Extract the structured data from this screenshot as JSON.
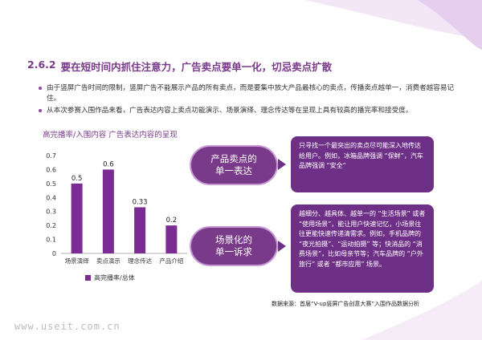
{
  "section": {
    "number": "2.6.2",
    "title": "要在短时间内抓住注意力，广告卖点要单一化，切忌卖点扩散"
  },
  "bullets": [
    "由于竖屏广告时间的限制，竖屏广告不能展示产品的所有卖点，而是要集中放大产品最核心的卖点，传播卖点越单一，消费者越容易记住。",
    "从本次参赛入围作品来看，广告表达内容上卖点功能演示、场景演绎、理念传达等在呈现上具有较高的播完率和接受度。"
  ],
  "chart_title": "高完播率/入围内容  广告表达内容的呈现",
  "chart_data": {
    "type": "bar",
    "categories": [
      "场景演绎",
      "卖点演示",
      "理念传达",
      "产品介绍"
    ],
    "series": [
      {
        "name": "高完播率/总体",
        "values": [
          0.5,
          0.6,
          0.33,
          0.2
        ]
      }
    ],
    "data_labels": [
      "0.5",
      "0.6",
      "0.33",
      "0.2"
    ],
    "y_ticks": [
      "0",
      "0.1",
      "0.2",
      "0.3",
      "0.4",
      "0.5",
      "0.6",
      "0.7"
    ],
    "ylim": [
      0,
      0.7
    ],
    "color": "#7b2c93",
    "legend": "bottom"
  },
  "tags": [
    {
      "line1": "产品卖点的",
      "line2": "单一表达"
    },
    {
      "line1": "场景化的",
      "line2": "单一诉求"
    }
  ],
  "callouts": [
    "只寻找一个最突出的卖点尽可能深入地传达给用户。例如，冰箱品牌强调 “保鲜”，汽车品牌强调 “安全”",
    "越细分、越具体、越单一的 “生活场景” 或者 “使用场景”，能让用户快速记忆，小场景往往更能快速传递清需求。例如，手机品牌的 “夜光拍摄”、“运动拍摄” 等；快消品的 “消费场景”，比如母亲节等；汽车品牌的 “户外旅行” 或者 “都市应用” 场景。"
  ],
  "source": "数据来源：首届“V-up竖屏广告创意大赛”入围作品数据分析",
  "watermark": "www.useit.com.cn",
  "colors": {
    "accent": "#7a3a8a",
    "bar": "#7b2c93",
    "callout": "#6e2f86"
  }
}
